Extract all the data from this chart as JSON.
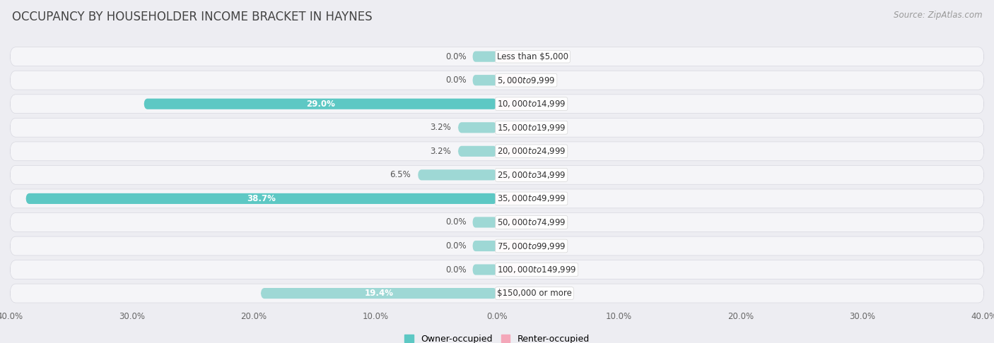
{
  "title": "OCCUPANCY BY HOUSEHOLDER INCOME BRACKET IN HAYNES",
  "source": "Source: ZipAtlas.com",
  "categories": [
    "Less than $5,000",
    "$5,000 to $9,999",
    "$10,000 to $14,999",
    "$15,000 to $19,999",
    "$20,000 to $24,999",
    "$25,000 to $34,999",
    "$35,000 to $49,999",
    "$50,000 to $74,999",
    "$75,000 to $99,999",
    "$100,000 to $149,999",
    "$150,000 or more"
  ],
  "owner_occupied": [
    0.0,
    0.0,
    29.0,
    3.2,
    3.2,
    6.5,
    38.7,
    0.0,
    0.0,
    0.0,
    19.4
  ],
  "renter_occupied": [
    0.0,
    0.0,
    0.0,
    0.0,
    0.0,
    0.0,
    0.0,
    0.0,
    0.0,
    0.0,
    0.0
  ],
  "owner_color": "#5DC8C4",
  "renter_color": "#F4A7B9",
  "owner_color_light": "#9ED8D5",
  "background_color": "#ededf2",
  "row_bg_color": "#f5f5f8",
  "xlim": 40.0,
  "min_bar_display": 2.0,
  "title_fontsize": 12,
  "source_fontsize": 8.5,
  "label_fontsize": 8.5,
  "cat_fontsize": 8.5,
  "tick_fontsize": 8.5,
  "legend_fontsize": 9,
  "legend_labels": [
    "Owner-occupied",
    "Renter-occupied"
  ]
}
